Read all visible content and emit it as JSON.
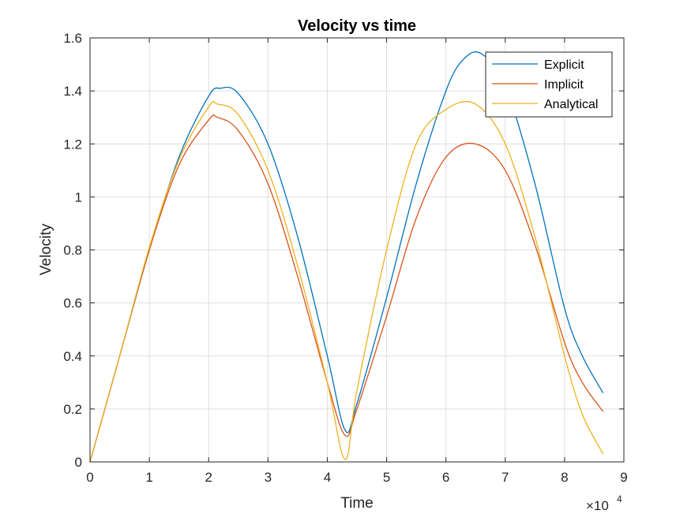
{
  "chart_data": {
    "type": "line",
    "title": "Velocity vs time",
    "xlabel": "Time",
    "ylabel": "Velocity",
    "x_exponent_label": "×10",
    "x_exponent_power": "4",
    "xlim": [
      0,
      9
    ],
    "ylim": [
      0,
      1.6
    ],
    "x_ticks": [
      "0",
      "1",
      "2",
      "3",
      "4",
      "5",
      "6",
      "7",
      "8",
      "9"
    ],
    "y_ticks": [
      "0",
      "0.2",
      "0.4",
      "0.6",
      "0.8",
      "1",
      "1.2",
      "1.4",
      "1.6"
    ],
    "grid": true,
    "legend_position": "top-right",
    "series": [
      {
        "name": "Explicit",
        "color": "#0072BD",
        "x": [
          0,
          0.5,
          1.0,
          1.5,
          2.0,
          2.2,
          2.5,
          3.0,
          3.5,
          4.0,
          4.3,
          4.5,
          5.0,
          5.5,
          6.0,
          6.3,
          6.6,
          7.0,
          7.5,
          8.0,
          8.3,
          8.65
        ],
        "values": [
          0,
          0.4,
          0.8,
          1.15,
          1.38,
          1.41,
          1.39,
          1.2,
          0.85,
          0.4,
          0.12,
          0.22,
          0.62,
          1.05,
          1.4,
          1.52,
          1.54,
          1.42,
          1.05,
          0.58,
          0.4,
          0.26
        ]
      },
      {
        "name": "Implicit",
        "color": "#D95319",
        "x": [
          0,
          0.5,
          1.0,
          1.5,
          2.0,
          2.15,
          2.5,
          3.0,
          3.5,
          4.0,
          4.3,
          4.5,
          5.0,
          5.5,
          6.0,
          6.5,
          7.0,
          7.5,
          8.0,
          8.3,
          8.65
        ],
        "values": [
          0,
          0.4,
          0.8,
          1.12,
          1.29,
          1.3,
          1.25,
          1.05,
          0.7,
          0.3,
          0.1,
          0.2,
          0.55,
          0.92,
          1.15,
          1.2,
          1.1,
          0.82,
          0.45,
          0.3,
          0.19
        ]
      },
      {
        "name": "Analytical",
        "color": "#EDB120",
        "x": [
          0,
          0.5,
          1.0,
          1.5,
          2.0,
          2.15,
          2.5,
          3.0,
          3.5,
          4.0,
          4.3,
          4.5,
          5.0,
          5.5,
          6.0,
          6.5,
          7.0,
          7.5,
          8.0,
          8.3,
          8.65
        ],
        "values": [
          0,
          0.4,
          0.81,
          1.14,
          1.34,
          1.35,
          1.31,
          1.1,
          0.74,
          0.3,
          0.01,
          0.27,
          0.8,
          1.2,
          1.33,
          1.35,
          1.2,
          0.85,
          0.4,
          0.18,
          0.03
        ]
      }
    ]
  }
}
